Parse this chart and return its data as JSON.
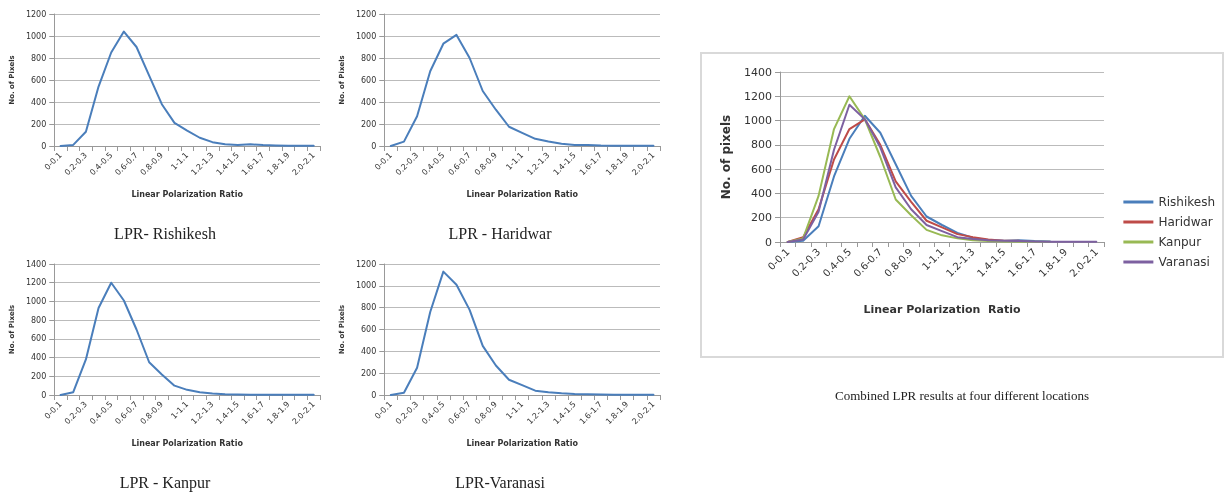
{
  "chart_data": [
    {
      "type": "line",
      "title": "LPR- Rishikesh",
      "xlabel": "Linear Polarization Ratio",
      "ylabel": "No. of Pixels",
      "categories": [
        "0-0.1",
        null,
        "0.2-0.3",
        null,
        "0.4-0.5",
        null,
        "0.6-0.7",
        null,
        "0.8-0.9",
        null,
        "1-1.1",
        null,
        "1.2-1.3",
        null,
        "1.4-1.5",
        null,
        "1.6-1.7",
        null,
        "1.8-1.9",
        null,
        "2.0-2.1"
      ],
      "ylim": [
        0,
        1200
      ],
      "yticks": [
        0,
        200,
        400,
        600,
        800,
        1000,
        1200
      ],
      "grid": "y",
      "legend": false,
      "marker": "none",
      "line_style": "solid",
      "series": [
        {
          "color": "#4a7ebb",
          "values": [
            0,
            10,
            130,
            540,
            850,
            1040,
            900,
            640,
            380,
            210,
            140,
            75,
            35,
            15,
            10,
            15,
            8,
            5,
            3,
            2,
            2
          ]
        }
      ]
    },
    {
      "type": "line",
      "title": "LPR - Haridwar",
      "xlabel": "Linear Polarization Ratio",
      "ylabel": "No. of Pixels",
      "categories": [
        "0-0.1",
        null,
        "0.2-0.3",
        null,
        "0.4-0.5",
        null,
        "0.6-0.7",
        null,
        "0.8-0.9",
        null,
        "1-1.1",
        null,
        "1.2-1.3",
        null,
        "1.4-1.5",
        null,
        "1.6-1.7",
        null,
        "1.8-1.9",
        null,
        "2.0-2.1"
      ],
      "ylim": [
        0,
        1200
      ],
      "yticks": [
        0,
        200,
        400,
        600,
        800,
        1000,
        1200
      ],
      "grid": "y",
      "legend": false,
      "marker": "none",
      "line_style": "solid",
      "series": [
        {
          "color": "#4a7ebb",
          "values": [
            0,
            40,
            270,
            680,
            930,
            1010,
            800,
            500,
            330,
            175,
            120,
            65,
            40,
            20,
            10,
            10,
            5,
            3,
            2,
            2,
            2
          ]
        }
      ]
    },
    {
      "type": "line",
      "title": "LPR - Kanpur",
      "xlabel": "Linear Polarization Ratio",
      "ylabel": "No. of Pixels",
      "categories": [
        "0-0.1",
        null,
        "0.2-0.3",
        null,
        "0.4-0.5",
        null,
        "0.6-0.7",
        null,
        "0.8-0.9",
        null,
        "1-1.1",
        null,
        "1.2-1.3",
        null,
        "1.4-1.5",
        null,
        "1.6-1.7",
        null,
        "1.8-1.9",
        null,
        "2.0-2.1"
      ],
      "ylim": [
        0,
        1400
      ],
      "yticks": [
        0,
        200,
        400,
        600,
        800,
        1000,
        1200,
        1400
      ],
      "grid": "y",
      "legend": false,
      "marker": "none",
      "line_style": "solid",
      "series": [
        {
          "color": "#4a7ebb",
          "values": [
            0,
            30,
            380,
            930,
            1200,
            1010,
            700,
            350,
            220,
            100,
            55,
            30,
            15,
            8,
            5,
            3,
            2,
            2,
            2,
            2,
            2
          ]
        }
      ]
    },
    {
      "type": "line",
      "title": "LPR-Varanasi",
      "xlabel": "Linear Polarization Ratio",
      "ylabel": "No. of Pixels",
      "categories": [
        "0-0.1",
        null,
        "0.2-0.3",
        null,
        "0.4-0.5",
        null,
        "0.6-0.7",
        null,
        "0.8-0.9",
        null,
        "1-1.1",
        null,
        "1.2-1.3",
        null,
        "1.4-1.5",
        null,
        "1.6-1.7",
        null,
        "1.8-1.9",
        null,
        "2.0-2.1"
      ],
      "ylim": [
        0,
        1200
      ],
      "yticks": [
        0,
        200,
        400,
        600,
        800,
        1000,
        1200
      ],
      "grid": "y",
      "legend": false,
      "marker": "none",
      "line_style": "solid",
      "series": [
        {
          "color": "#4a7ebb",
          "values": [
            0,
            20,
            250,
            760,
            1130,
            1010,
            780,
            450,
            270,
            140,
            90,
            40,
            25,
            15,
            10,
            8,
            5,
            3,
            2,
            2,
            2
          ]
        }
      ]
    },
    {
      "type": "line",
      "title": "Combined LPR results at four different locations",
      "xlabel": "Linear Polarization  Ratio",
      "ylabel": "No. of pixels",
      "categories": [
        "0-0.1",
        null,
        "0.2-0.3",
        null,
        "0.4-0.5",
        null,
        "0.6-0.7",
        null,
        "0.8-0.9",
        null,
        "1-1.1",
        null,
        "1.2-1.3",
        null,
        "1.4-1.5",
        null,
        "1.6-1.7",
        null,
        "1.8-1.9",
        null,
        "2.0-2.1"
      ],
      "ylim": [
        0,
        1400
      ],
      "yticks": [
        0,
        200,
        400,
        600,
        800,
        1000,
        1200,
        1400
      ],
      "grid": "y",
      "legend": "right",
      "marker": "none",
      "line_style": "solid",
      "series": [
        {
          "name": "Rishikesh",
          "color": "#4a7ebb",
          "values": [
            0,
            10,
            130,
            540,
            850,
            1040,
            900,
            640,
            380,
            210,
            140,
            75,
            35,
            15,
            10,
            15,
            8,
            5,
            null,
            null,
            null
          ]
        },
        {
          "name": "Haridwar",
          "color": "#be4b48",
          "values": [
            0,
            40,
            270,
            680,
            930,
            1010,
            800,
            500,
            330,
            175,
            120,
            65,
            40,
            20,
            10,
            10,
            null,
            null,
            null,
            null,
            null
          ]
        },
        {
          "name": "Kanpur",
          "color": "#98b954",
          "values": [
            0,
            30,
            380,
            930,
            1200,
            1010,
            700,
            350,
            220,
            100,
            55,
            30,
            15,
            8,
            5,
            3,
            2,
            2,
            null,
            null,
            null
          ]
        },
        {
          "name": "Varanasi",
          "color": "#7d60a0",
          "values": [
            0,
            20,
            250,
            760,
            1130,
            1010,
            780,
            450,
            270,
            140,
            90,
            40,
            25,
            15,
            10,
            8,
            5,
            3,
            2,
            2,
            2
          ]
        }
      ]
    }
  ]
}
